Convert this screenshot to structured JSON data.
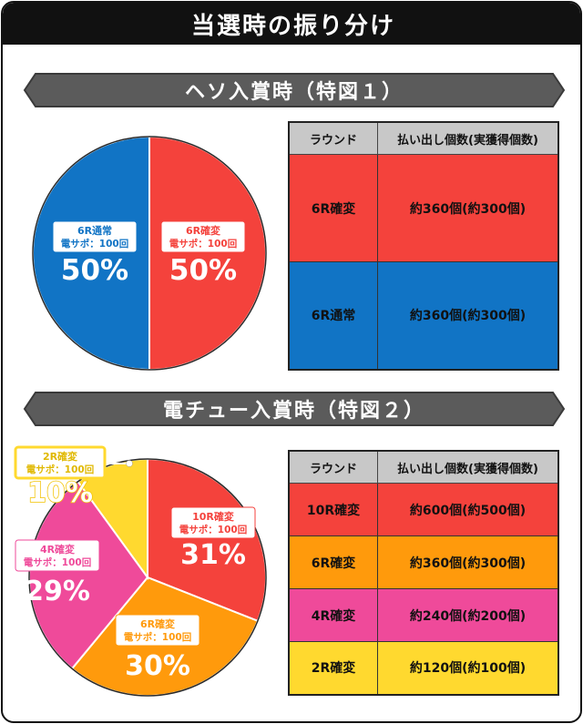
{
  "page_title": "当選時の振り分け",
  "sections": [
    {
      "heading": "ヘソ入賞時（特図１）",
      "table": {
        "headers": [
          "ラウンド",
          "払い出し個数(実獲得個数)"
        ],
        "rows": [
          {
            "round": "6R確変",
            "payout": "約360個(約300個)",
            "color": "#f4423c"
          },
          {
            "round": "6R通常",
            "payout": "約360個(約300個)",
            "color": "#1174c5"
          }
        ]
      }
    },
    {
      "heading": "電チュー入賞時（特図２）",
      "table": {
        "headers": [
          "ラウンド",
          "払い出し個数(実獲得個数)"
        ],
        "rows": [
          {
            "round": "10R確変",
            "payout": "約600個(約500個)",
            "color": "#f4423c"
          },
          {
            "round": "6R確変",
            "payout": "約360個(約300個)",
            "color": "#ff9a0c"
          },
          {
            "round": "4R確変",
            "payout": "約240個(約200個)",
            "color": "#ef4a9a"
          },
          {
            "round": "2R確変",
            "payout": "約120個(約100個)",
            "color": "#ffd92f"
          }
        ]
      }
    }
  ],
  "chart_data": [
    {
      "type": "pie",
      "slices": [
        {
          "label": "6R確変",
          "sublabel": "電サポ：100回",
          "value": 50,
          "display": "50%",
          "color": "#f4423c"
        },
        {
          "label": "6R通常",
          "sublabel": "電サポ：100回",
          "value": 50,
          "display": "50%",
          "color": "#1174c5"
        }
      ]
    },
    {
      "type": "pie",
      "slices": [
        {
          "label": "10R確変",
          "sublabel": "電サポ：100回",
          "value": 31,
          "display": "31%",
          "color": "#f4423c"
        },
        {
          "label": "6R確変",
          "sublabel": "電サポ：100回",
          "value": 30,
          "display": "30%",
          "color": "#ff9a0c"
        },
        {
          "label": "4R確変",
          "sublabel": "電サポ：100回",
          "value": 29,
          "display": "29%",
          "color": "#ef4a9a"
        },
        {
          "label": "2R確変",
          "sublabel": "電サポ：100回",
          "value": 10,
          "display": "10%",
          "color": "#ffd92f"
        }
      ]
    }
  ]
}
